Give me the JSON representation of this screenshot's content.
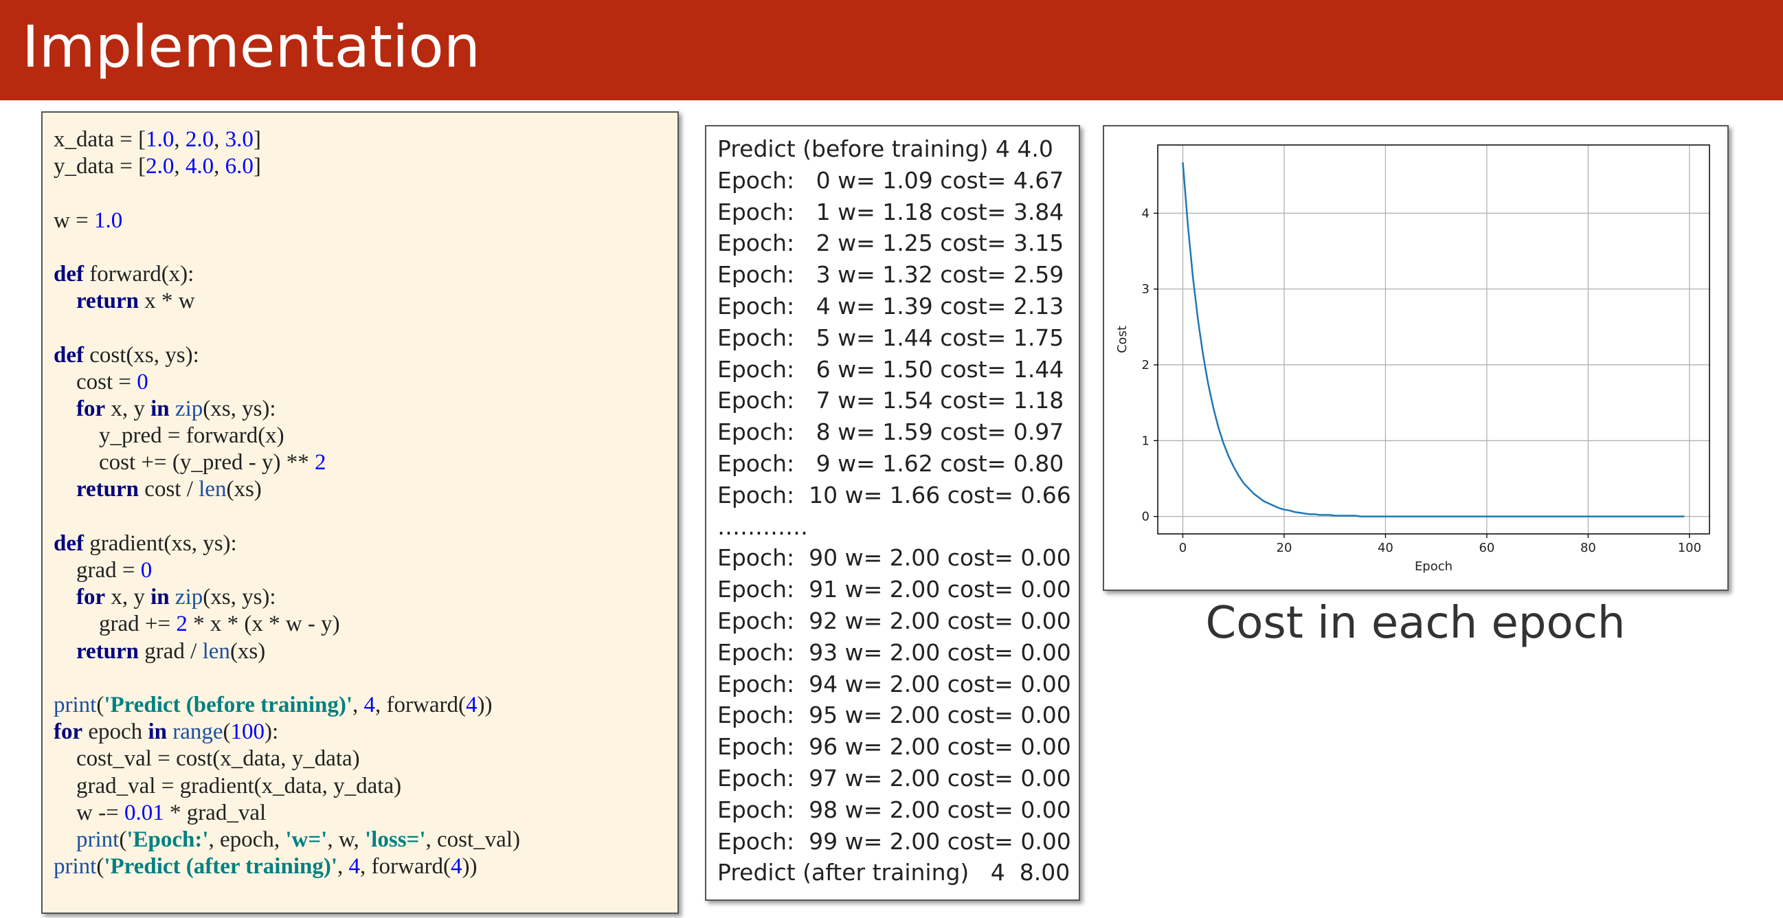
{
  "header": {
    "title": "Implementation"
  },
  "code": {
    "blocks": [
      [
        "x_data = [1.0, 2.0, 3.0]",
        "y_data = [2.0, 4.0, 6.0]"
      ],
      [
        "w = 1.0"
      ],
      [
        "def forward(x):",
        "    return x * w"
      ],
      [
        "def cost(xs, ys):",
        "    cost = 0",
        "    for x, y in zip(xs, ys):",
        "        y_pred = forward(x)",
        "        cost += (y_pred - y) ** 2",
        "    return cost / len(xs)"
      ],
      [
        "def gradient(xs, ys):",
        "    grad = 0",
        "    for x, y in zip(xs, ys):",
        "        grad += 2 * x * (x * w - y)",
        "    return grad / len(xs)"
      ],
      [
        "print('Predict (before training)', 4, forward(4))",
        "for epoch in range(100):",
        "    cost_val = cost(x_data, y_data)",
        "    grad_val = gradient(x_data, y_data)",
        "    w -= 0.01 * grad_val",
        "    print('Epoch:', epoch, 'w=', w, 'loss=', cost_val)",
        "print('Predict (after training)', 4, forward(4))"
      ]
    ]
  },
  "output": {
    "lines": [
      "Predict (before training) 4 4.0",
      "Epoch:   0 w= 1.09 cost= 4.67",
      "Epoch:   1 w= 1.18 cost= 3.84",
      "Epoch:   2 w= 1.25 cost= 3.15",
      "Epoch:   3 w= 1.32 cost= 2.59",
      "Epoch:   4 w= 1.39 cost= 2.13",
      "Epoch:   5 w= 1.44 cost= 1.75",
      "Epoch:   6 w= 1.50 cost= 1.44",
      "Epoch:   7 w= 1.54 cost= 1.18",
      "Epoch:   8 w= 1.59 cost= 0.97",
      "Epoch:   9 w= 1.62 cost= 0.80",
      "Epoch:  10 w= 1.66 cost= 0.66",
      "…………",
      "Epoch:  90 w= 2.00 cost= 0.00",
      "Epoch:  91 w= 2.00 cost= 0.00",
      "Epoch:  92 w= 2.00 cost= 0.00",
      "Epoch:  93 w= 2.00 cost= 0.00",
      "Epoch:  94 w= 2.00 cost= 0.00",
      "Epoch:  95 w= 2.00 cost= 0.00",
      "Epoch:  96 w= 2.00 cost= 0.00",
      "Epoch:  97 w= 2.00 cost= 0.00",
      "Epoch:  98 w= 2.00 cost= 0.00",
      "Epoch:  99 w= 2.00 cost= 0.00",
      "Predict (after training)   4  8.00"
    ]
  },
  "chart_data": {
    "type": "line",
    "x_label": "Epoch",
    "y_label": "Cost",
    "color": "#1f77b4",
    "grid": true,
    "x": [
      0,
      1,
      2,
      3,
      4,
      5,
      6,
      7,
      8,
      9,
      10,
      11,
      12,
      13,
      14,
      15,
      16,
      17,
      18,
      19,
      20,
      21,
      22,
      23,
      24,
      25,
      26,
      27,
      28,
      29,
      30,
      31,
      32,
      33,
      34,
      35,
      36,
      37,
      38,
      39,
      40,
      41,
      42,
      43,
      44,
      45,
      46,
      47,
      48,
      49,
      50,
      51,
      52,
      53,
      54,
      55,
      56,
      57,
      58,
      59,
      60,
      61,
      62,
      63,
      64,
      65,
      66,
      67,
      68,
      69,
      70,
      71,
      72,
      73,
      74,
      75,
      76,
      77,
      78,
      79,
      80,
      81,
      82,
      83,
      84,
      85,
      86,
      87,
      88,
      89,
      90,
      91,
      92,
      93,
      94,
      95,
      96,
      97,
      98,
      99
    ],
    "values": [
      4.67,
      3.84,
      3.15,
      2.59,
      2.13,
      1.75,
      1.44,
      1.18,
      0.97,
      0.8,
      0.66,
      0.54,
      0.44,
      0.37,
      0.3,
      0.25,
      0.2,
      0.17,
      0.14,
      0.11,
      0.09,
      0.08,
      0.06,
      0.05,
      0.04,
      0.03,
      0.03,
      0.02,
      0.02,
      0.02,
      0.01,
      0.01,
      0.01,
      0.01,
      0.01,
      0,
      0,
      0,
      0,
      0,
      0,
      0,
      0,
      0,
      0,
      0,
      0,
      0,
      0,
      0,
      0,
      0,
      0,
      0,
      0,
      0,
      0,
      0,
      0,
      0,
      0,
      0,
      0,
      0,
      0,
      0,
      0,
      0,
      0,
      0,
      0,
      0,
      0,
      0,
      0,
      0,
      0,
      0,
      0,
      0,
      0,
      0,
      0,
      0,
      0,
      0,
      0,
      0,
      0,
      0,
      0,
      0,
      0,
      0,
      0,
      0,
      0,
      0,
      0,
      0
    ],
    "xlim": [
      -4.95,
      103.95
    ],
    "ylim": [
      -0.23,
      4.9
    ],
    "xticks": [
      0,
      20,
      40,
      60,
      80,
      100
    ],
    "yticks": [
      0,
      1,
      2,
      3,
      4
    ]
  },
  "caption": "Cost in each epoch"
}
